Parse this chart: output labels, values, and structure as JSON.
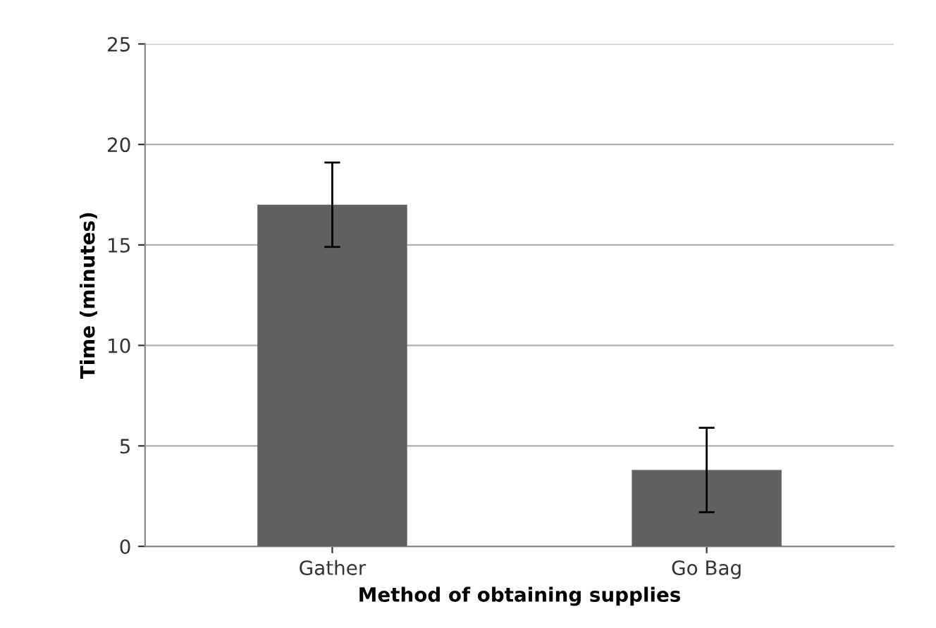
{
  "chart_data": {
    "type": "bar",
    "xlabel": "Method of obtaining supplies",
    "ylabel": "Time (minutes)",
    "categories": [
      "Gather",
      "Go Bag"
    ],
    "values": [
      17.0,
      3.8
    ],
    "errors": [
      2.1,
      2.1
    ],
    "color": "#606060",
    "ylim": [
      0,
      25
    ],
    "yticks": [
      0,
      5,
      10,
      15,
      20,
      25
    ],
    "grid": "y"
  }
}
